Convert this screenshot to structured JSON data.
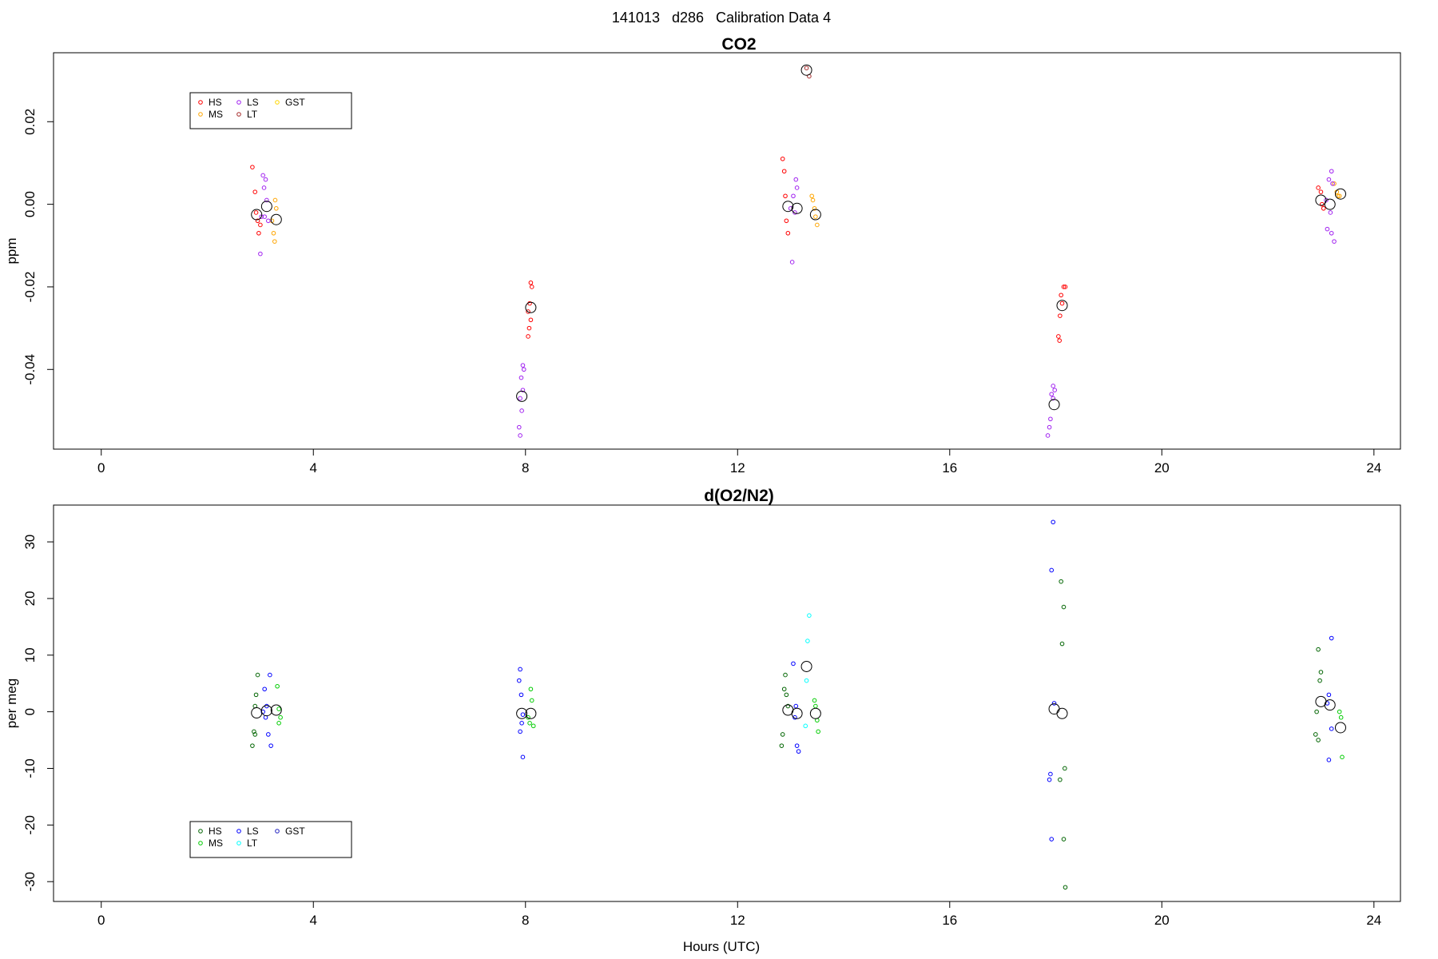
{
  "figure_title": "141013   d286   Calibration Data 4",
  "chart_data": [
    {
      "type": "scatter",
      "title": "CO2",
      "xlabel": "",
      "ylabel": "ppm",
      "xlim": [
        -0.9,
        24.5
      ],
      "ylim": [
        -0.0593,
        0.0367
      ],
      "x_ticks": [
        0,
        4,
        8,
        12,
        16,
        20,
        24
      ],
      "y_ticks": [
        -0.04,
        -0.02,
        0.0,
        0.02
      ],
      "y_tick_labels": [
        "-0.04",
        "-0.02",
        "0.00",
        "0.02"
      ],
      "grid": false,
      "legend": {
        "placement": "top-left",
        "entries": [
          {
            "label": "HS",
            "color": "#ff0000"
          },
          {
            "label": "MS",
            "color": "#ffa500"
          },
          {
            "label": "LS",
            "color": "#a020f0"
          },
          {
            "label": "LT",
            "color": "#a52a2a"
          },
          {
            "label": "GST",
            "color": "#ffd700"
          }
        ]
      },
      "series": [
        {
          "name": "HS",
          "color": "#ff0000",
          "points": [
            [
              2.85,
              0.009
            ],
            [
              2.9,
              0.003
            ],
            [
              2.92,
              -0.002
            ],
            [
              2.95,
              -0.004
            ],
            [
              3.0,
              -0.005
            ],
            [
              2.97,
              -0.007
            ],
            [
              8.1,
              -0.019
            ],
            [
              8.12,
              -0.02
            ],
            [
              8.08,
              -0.024
            ],
            [
              8.05,
              -0.026
            ],
            [
              8.1,
              -0.028
            ],
            [
              8.07,
              -0.03
            ],
            [
              8.05,
              -0.032
            ],
            [
              12.85,
              0.011
            ],
            [
              12.88,
              0.008
            ],
            [
              12.9,
              0.002
            ],
            [
              12.92,
              -0.004
            ],
            [
              12.95,
              -0.007
            ],
            [
              18.15,
              -0.02
            ],
            [
              18.18,
              -0.02
            ],
            [
              18.1,
              -0.022
            ],
            [
              18.12,
              -0.024
            ],
            [
              18.08,
              -0.027
            ],
            [
              18.05,
              -0.032
            ],
            [
              18.07,
              -0.033
            ],
            [
              22.95,
              0.004
            ],
            [
              23.0,
              0.003
            ],
            [
              23.02,
              0.0
            ],
            [
              23.05,
              -0.001
            ]
          ]
        },
        {
          "name": "MS",
          "color": "#ffa500",
          "points": [
            [
              3.28,
              0.001
            ],
            [
              3.3,
              -0.001
            ],
            [
              3.22,
              -0.004
            ],
            [
              3.25,
              -0.007
            ],
            [
              3.27,
              -0.009
            ],
            [
              13.4,
              0.002
            ],
            [
              13.42,
              0.001
            ],
            [
              13.45,
              -0.001
            ],
            [
              13.47,
              -0.003
            ],
            [
              13.5,
              -0.005
            ],
            [
              23.25,
              0.005
            ],
            [
              23.3,
              0.003
            ],
            [
              23.32,
              0.002
            ],
            [
              23.35,
              0.002
            ]
          ]
        },
        {
          "name": "LS",
          "color": "#a020f0",
          "points": [
            [
              3.05,
              0.007
            ],
            [
              3.1,
              0.006
            ],
            [
              3.07,
              0.004
            ],
            [
              3.12,
              0.001
            ],
            [
              3.02,
              -0.003
            ],
            [
              3.08,
              -0.003
            ],
            [
              3.15,
              -0.004
            ],
            [
              3.0,
              -0.012
            ],
            [
              7.95,
              -0.039
            ],
            [
              7.97,
              -0.04
            ],
            [
              7.92,
              -0.042
            ],
            [
              7.95,
              -0.045
            ],
            [
              7.9,
              -0.047
            ],
            [
              7.93,
              -0.05
            ],
            [
              7.88,
              -0.054
            ],
            [
              7.9,
              -0.056
            ],
            [
              13.1,
              0.006
            ],
            [
              13.12,
              0.004
            ],
            [
              13.05,
              0.002
            ],
            [
              13.0,
              -0.001
            ],
            [
              13.08,
              -0.002
            ],
            [
              13.03,
              -0.014
            ],
            [
              17.95,
              -0.044
            ],
            [
              17.98,
              -0.045
            ],
            [
              17.92,
              -0.046
            ],
            [
              17.95,
              -0.047
            ],
            [
              17.9,
              -0.052
            ],
            [
              17.88,
              -0.054
            ],
            [
              17.85,
              -0.056
            ],
            [
              23.2,
              0.008
            ],
            [
              23.15,
              0.006
            ],
            [
              23.22,
              0.005
            ],
            [
              23.1,
              0.001
            ],
            [
              23.18,
              -0.002
            ],
            [
              23.12,
              -0.006
            ],
            [
              23.2,
              -0.007
            ],
            [
              23.25,
              -0.009
            ]
          ]
        },
        {
          "name": "LT",
          "color": "#a52a2a",
          "points": [
            [
              13.3,
              0.033
            ],
            [
              13.35,
              0.031
            ]
          ]
        },
        {
          "name": "GST",
          "color": "#ffd700",
          "points": []
        }
      ],
      "means": [
        [
          2.93,
          -0.0025
        ],
        [
          3.12,
          -0.0005
        ],
        [
          3.3,
          -0.0037
        ],
        [
          7.93,
          -0.0465
        ],
        [
          8.1,
          -0.025
        ],
        [
          12.95,
          -0.0005
        ],
        [
          13.12,
          -0.001
        ],
        [
          13.3,
          0.0325
        ],
        [
          13.47,
          -0.0025
        ],
        [
          17.97,
          -0.0485
        ],
        [
          18.12,
          -0.0245
        ],
        [
          23.0,
          0.001
        ],
        [
          23.17,
          0.0
        ],
        [
          23.37,
          0.0025
        ]
      ]
    },
    {
      "type": "scatter",
      "title": "d(O2/N2)",
      "xlabel": "Hours (UTC)",
      "ylabel": "per meg",
      "xlim": [
        -0.9,
        24.5
      ],
      "ylim": [
        -33.5,
        36.5
      ],
      "x_ticks": [
        0,
        4,
        8,
        12,
        16,
        20,
        24
      ],
      "y_ticks": [
        -30,
        -20,
        -10,
        0,
        10,
        20,
        30
      ],
      "y_tick_labels": [
        "-30",
        "-20",
        "-10",
        "0",
        "10",
        "20",
        "30"
      ],
      "grid": false,
      "legend": {
        "placement": "bottom-left",
        "entries": [
          {
            "label": "HS",
            "color": "#006400"
          },
          {
            "label": "MS",
            "color": "#00cc00"
          },
          {
            "label": "LS",
            "color": "#0000ff"
          },
          {
            "label": "LT",
            "color": "#00ffff"
          },
          {
            "label": "GST",
            "color": "#2020c0"
          }
        ]
      },
      "series": [
        {
          "name": "HS",
          "color": "#006400",
          "points": [
            [
              2.95,
              6.5
            ],
            [
              2.92,
              3.0
            ],
            [
              2.9,
              1.0
            ],
            [
              2.88,
              -3.5
            ],
            [
              2.9,
              -4.0
            ],
            [
              2.85,
              -6.0
            ],
            [
              12.9,
              6.5
            ],
            [
              12.88,
              4.0
            ],
            [
              12.92,
              3.0
            ],
            [
              12.95,
              1.0
            ],
            [
              12.85,
              -4.0
            ],
            [
              12.83,
              -6.0
            ],
            [
              18.1,
              23.0
            ],
            [
              18.15,
              18.5
            ],
            [
              18.12,
              12.0
            ],
            [
              18.17,
              -10.0
            ],
            [
              18.08,
              -12.0
            ],
            [
              18.15,
              -22.5
            ],
            [
              18.18,
              -31.0
            ],
            [
              22.95,
              11.0
            ],
            [
              23.0,
              7.0
            ],
            [
              22.98,
              5.5
            ],
            [
              22.92,
              0.0
            ],
            [
              22.9,
              -4.0
            ],
            [
              22.95,
              -5.0
            ]
          ]
        },
        {
          "name": "MS",
          "color": "#00cc00",
          "points": [
            [
              3.32,
              4.5
            ],
            [
              3.35,
              0.5
            ],
            [
              3.38,
              -1.0
            ],
            [
              3.35,
              -2.0
            ],
            [
              8.1,
              4.0
            ],
            [
              8.12,
              2.0
            ],
            [
              8.05,
              -1.0
            ],
            [
              8.08,
              -2.0
            ],
            [
              8.15,
              -2.5
            ],
            [
              13.45,
              2.0
            ],
            [
              13.47,
              1.0
            ],
            [
              13.5,
              -1.5
            ],
            [
              13.52,
              -3.5
            ],
            [
              23.35,
              0.0
            ],
            [
              23.38,
              -1.0
            ],
            [
              23.4,
              -8.0
            ]
          ]
        },
        {
          "name": "LS",
          "color": "#0000ff",
          "points": [
            [
              3.18,
              6.5
            ],
            [
              3.08,
              4.0
            ],
            [
              3.12,
              1.0
            ],
            [
              3.05,
              0.0
            ],
            [
              3.1,
              -1.0
            ],
            [
              3.15,
              -4.0
            ],
            [
              3.2,
              -6.0
            ],
            [
              7.9,
              7.5
            ],
            [
              7.88,
              5.5
            ],
            [
              7.92,
              3.0
            ],
            [
              7.95,
              -0.5
            ],
            [
              7.93,
              -2.0
            ],
            [
              7.9,
              -3.5
            ],
            [
              7.95,
              -8.0
            ],
            [
              13.05,
              8.5
            ],
            [
              13.1,
              1.0
            ],
            [
              13.08,
              -1.0
            ],
            [
              13.12,
              -6.0
            ],
            [
              13.15,
              -7.0
            ],
            [
              17.95,
              33.5
            ],
            [
              17.92,
              25.0
            ],
            [
              17.97,
              1.5
            ],
            [
              17.9,
              -11.0
            ],
            [
              17.88,
              -12.0
            ],
            [
              17.92,
              -22.5
            ],
            [
              23.2,
              13.0
            ],
            [
              23.15,
              3.0
            ],
            [
              23.12,
              1.5
            ],
            [
              23.2,
              -3.0
            ],
            [
              23.15,
              -8.5
            ]
          ]
        },
        {
          "name": "LT",
          "color": "#00ffff",
          "points": [
            [
              13.35,
              17.0
            ],
            [
              13.32,
              12.5
            ],
            [
              13.3,
              5.5
            ],
            [
              13.28,
              -2.5
            ]
          ]
        },
        {
          "name": "GST",
          "color": "#2020c0",
          "points": []
        }
      ],
      "means": [
        [
          2.93,
          -0.2
        ],
        [
          3.12,
          0.2
        ],
        [
          3.3,
          0.3
        ],
        [
          7.93,
          -0.3
        ],
        [
          8.1,
          -0.3
        ],
        [
          12.95,
          0.3
        ],
        [
          13.12,
          -0.3
        ],
        [
          13.3,
          8.0
        ],
        [
          13.47,
          -0.3
        ],
        [
          17.97,
          0.5
        ],
        [
          18.12,
          -0.3
        ],
        [
          23.0,
          1.8
        ],
        [
          23.17,
          1.2
        ],
        [
          23.37,
          -2.8
        ]
      ]
    }
  ]
}
